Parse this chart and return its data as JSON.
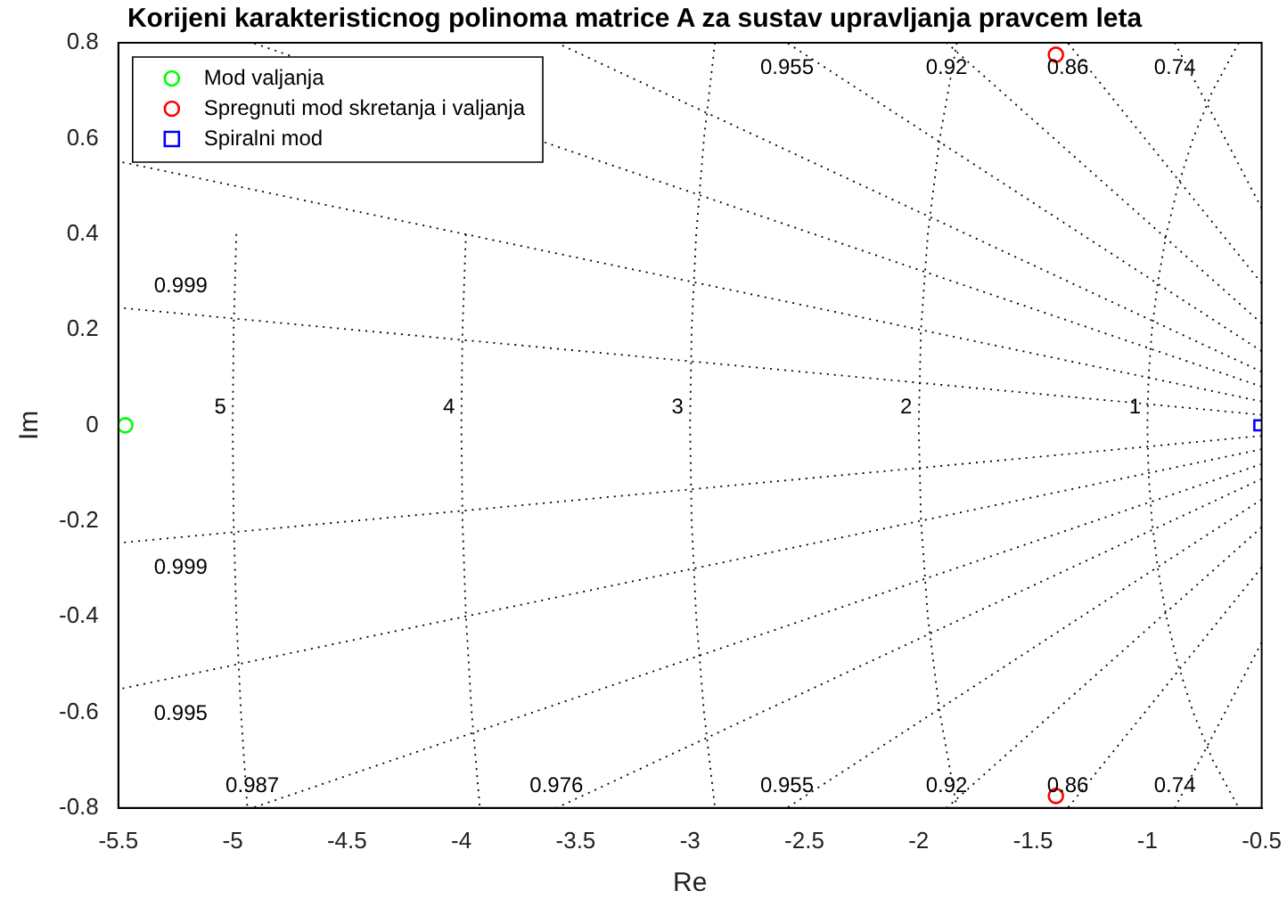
{
  "chart_data": {
    "type": "scatter",
    "title": "Korijeni karakteristicnog polinoma matrice A za sustav upravljanja pravcem leta",
    "xlabel": "Re",
    "ylabel": "Im",
    "xlim": [
      -5.5,
      -0.5
    ],
    "xticks": [
      -5.5,
      -5,
      -4.5,
      -4,
      -3.5,
      -3,
      -2.5,
      -2,
      -1.5,
      -1,
      -0.5
    ],
    "ylim": [
      -0.8,
      0.8
    ],
    "yticks": [
      -0.8,
      -0.6,
      -0.4,
      -0.2,
      0,
      0.2,
      0.4,
      0.6,
      0.8
    ],
    "legend": "top left",
    "series": [
      {
        "name": "Mod valjanja",
        "type": "scatter",
        "marker": "circle",
        "color": "#00ff00",
        "x": [
          -5.47
        ],
        "values": [
          0
        ]
      },
      {
        "name": "Spregnuti mod skretanja i valjanja",
        "type": "scatter",
        "marker": "circle",
        "color": "#ff0000",
        "x": [
          -1.4,
          -1.4
        ],
        "values": [
          0.775,
          -0.775
        ]
      },
      {
        "name": "Spiralni mod",
        "type": "scatter",
        "marker": "square",
        "color": "#0000ff",
        "x": [
          -0.51
        ],
        "values": [
          0
        ]
      },
      {
        "type": "line",
        "line_style": "dotted",
        "color": "#000000",
        "x": [
          -0.5,
          -5.5
        ],
        "values": [
          0.022,
          0.246
        ]
      },
      {
        "type": "line",
        "line_style": "dotted",
        "color": "#000000",
        "x": [
          -0.5,
          -5.5
        ],
        "values": [
          0.05,
          0.552
        ]
      },
      {
        "type": "line",
        "line_style": "dotted",
        "color": "#000000",
        "x": [
          -0.5,
          -4.914
        ],
        "values": [
          0.081,
          0.8
        ]
      },
      {
        "type": "line",
        "line_style": "dotted",
        "color": "#000000",
        "x": [
          -0.5,
          -3.584
        ],
        "values": [
          0.112,
          0.8
        ]
      },
      {
        "type": "line",
        "line_style": "dotted",
        "color": "#000000",
        "x": [
          -0.5,
          -2.576
        ],
        "values": [
          0.155,
          0.8
        ]
      },
      {
        "type": "line",
        "line_style": "dotted",
        "color": "#000000",
        "x": [
          -0.5,
          -1.878
        ],
        "values": [
          0.213,
          0.8
        ]
      },
      {
        "type": "line",
        "line_style": "dotted",
        "color": "#000000",
        "x": [
          -0.5,
          -1.348
        ],
        "values": [
          0.297,
          0.8
        ]
      },
      {
        "type": "line",
        "line_style": "dotted",
        "color": "#000000",
        "x": [
          -0.5,
          -0.88
        ],
        "values": [
          0.454,
          0.8
        ]
      },
      {
        "type": "line",
        "line_style": "dotted",
        "color": "#000000",
        "x": [
          -0.5,
          -5.5
        ],
        "values": [
          -0.022,
          -0.246
        ]
      },
      {
        "type": "line",
        "line_style": "dotted",
        "color": "#000000",
        "x": [
          -0.5,
          -5.5
        ],
        "values": [
          -0.05,
          -0.552
        ]
      },
      {
        "type": "line",
        "line_style": "dotted",
        "color": "#000000",
        "x": [
          -0.5,
          -4.914
        ],
        "values": [
          -0.081,
          -0.8
        ]
      },
      {
        "type": "line",
        "line_style": "dotted",
        "color": "#000000",
        "x": [
          -0.5,
          -3.584
        ],
        "values": [
          -0.112,
          -0.8
        ]
      },
      {
        "type": "line",
        "line_style": "dotted",
        "color": "#000000",
        "x": [
          -0.5,
          -2.576
        ],
        "values": [
          -0.155,
          -0.8
        ]
      },
      {
        "type": "line",
        "line_style": "dotted",
        "color": "#000000",
        "x": [
          -0.5,
          -1.878
        ],
        "values": [
          -0.213,
          -0.8
        ]
      },
      {
        "type": "line",
        "line_style": "dotted",
        "color": "#000000",
        "x": [
          -0.5,
          -1.348
        ],
        "values": [
          -0.297,
          -0.8
        ]
      },
      {
        "type": "line",
        "line_style": "dotted",
        "color": "#000000",
        "x": [
          -0.5,
          -0.88
        ],
        "values": [
          -0.454,
          -0.8
        ]
      },
      {
        "type": "line",
        "line_style": "dotted",
        "color": "#000000",
        "x": [
          -0.6,
          -0.714,
          -0.8,
          -0.866,
          -0.917,
          -0.954,
          -0.98,
          -0.995,
          -1,
          -0.995,
          -0.98,
          -0.954,
          -0.917,
          -0.866,
          -0.8,
          -0.714,
          -0.6
        ],
        "values": [
          0.8,
          0.7,
          0.6,
          0.5,
          0.4,
          0.3,
          0.2,
          0.1,
          0,
          -0.1,
          -0.2,
          -0.3,
          -0.4,
          -0.5,
          -0.6,
          -0.7,
          -0.8
        ]
      },
      {
        "type": "line",
        "line_style": "dotted",
        "color": "#000000",
        "x": [
          -1.833,
          -1.908,
          -1.96,
          -1.99,
          -2,
          -1.99,
          -1.96,
          -1.908,
          -1.833
        ],
        "values": [
          0.8,
          0.6,
          0.4,
          0.2,
          0,
          -0.2,
          -0.4,
          -0.6,
          -0.8
        ]
      },
      {
        "type": "line",
        "line_style": "dotted",
        "color": "#000000",
        "x": [
          -2.891,
          -2.939,
          -2.973,
          -2.993,
          -3,
          -2.993,
          -2.973,
          -2.939,
          -2.891
        ],
        "values": [
          0.8,
          0.6,
          0.4,
          0.2,
          0,
          -0.2,
          -0.4,
          -0.6,
          -0.8
        ]
      },
      {
        "type": "line",
        "line_style": "dotted",
        "color": "#000000",
        "x": [
          -3.98,
          -3.995,
          -4,
          -3.995,
          -3.98,
          -3.955,
          -3.919
        ],
        "values": [
          0.4,
          0.2,
          0,
          -0.2,
          -0.4,
          -0.6,
          -0.8
        ]
      },
      {
        "type": "line",
        "line_style": "dotted",
        "color": "#000000",
        "x": [
          -4.984,
          -4.996,
          -5,
          -4.996,
          -4.984,
          -4.964,
          -4.936
        ],
        "values": [
          0.4,
          0.2,
          0,
          -0.2,
          -0.4,
          -0.6,
          -0.8
        ]
      }
    ],
    "annotations": [
      {
        "text": "5",
        "x": -5,
        "y": 0
      },
      {
        "text": "4",
        "x": -4,
        "y": 0
      },
      {
        "text": "3",
        "x": -3,
        "y": 0
      },
      {
        "text": "2",
        "x": -2,
        "y": 0
      },
      {
        "text": "1",
        "x": -1,
        "y": 0
      },
      {
        "text": "0.999",
        "x": -5.5,
        "y": 0.246
      },
      {
        "text": "0.999",
        "x": -5.5,
        "y": -0.246
      },
      {
        "text": "0.995",
        "x": -5.5,
        "y": -0.552
      },
      {
        "text": "0.987",
        "x": -4.914,
        "y": -0.8
      },
      {
        "text": "0.976",
        "x": -3.584,
        "y": -0.8
      },
      {
        "text": "0.955",
        "x": -2.576,
        "y": -0.8
      },
      {
        "text": "0.92",
        "x": -1.878,
        "y": -0.8
      },
      {
        "text": "0.86",
        "x": -1.348,
        "y": -0.8
      },
      {
        "text": "0.74",
        "x": -0.88,
        "y": -0.8
      },
      {
        "text": "0.955",
        "x": -2.576,
        "y": 0.8
      },
      {
        "text": "0.92",
        "x": -1.878,
        "y": 0.8
      },
      {
        "text": "0.86",
        "x": -1.348,
        "y": 0.8
      },
      {
        "text": "0.74",
        "x": -0.88,
        "y": 0.8
      }
    ]
  }
}
